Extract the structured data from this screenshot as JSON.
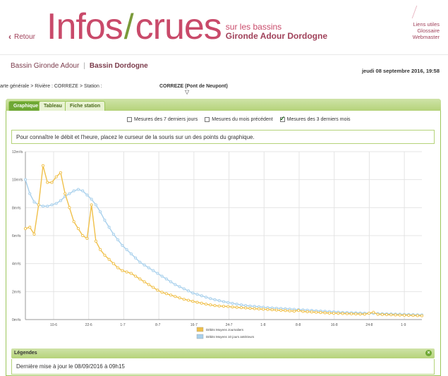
{
  "header": {
    "back_label": "Retour",
    "logo_part1": "Infos",
    "logo_part2": "crues",
    "logo_sub1": "sur les bassins",
    "logo_sub2": "Gironde Adour Dordogne",
    "links": [
      "Liens utiles",
      "Glossaire",
      "Webmaster"
    ]
  },
  "basins": {
    "items": [
      "Bassin Gironde Adour",
      "Bassin Dordogne"
    ],
    "separator": "|",
    "active_index": 1
  },
  "date_text": "jeudi 08 septembre 2016, 19:58",
  "breadcrumb": {
    "text": "arte générale > Rivière : CORREZE > Station :",
    "station": "CORREZE (Pont de Neupont)"
  },
  "tabs": [
    {
      "label": "Graphique",
      "active": true
    },
    {
      "label": "Tableau",
      "active": false
    },
    {
      "label": "Fiche station",
      "active": false
    }
  ],
  "filters": [
    {
      "label": "Mesures des 7 derniers jours",
      "checked": false
    },
    {
      "label": "Mesures du mois précédent",
      "checked": false
    },
    {
      "label": "Mesures des 3 derniers mois",
      "checked": true
    }
  ],
  "hint_text": "Pour connaître le débit et l'heure, placez le curseur de la souris sur un des points du graphique.",
  "legend_section_title": "Légendes",
  "update_text": "Dernière mise à jour le 08/09/2016 à 09h15",
  "colors": {
    "accent": "#6ea834",
    "series_daily": "#f0c04a",
    "series_10days": "#a8d0ec",
    "brand": "#c94a6a"
  },
  "chart_data": {
    "type": "line",
    "ylim": [
      0,
      12
    ],
    "y_ticks": [
      "0m³/s",
      "2m³/s",
      "4m³/s",
      "6m³/s",
      "8m³/s",
      "10m³/s",
      "12m³/s"
    ],
    "x_ticks": [
      "10-6",
      "22-6",
      "1-7",
      "8-7",
      "16-7",
      "24-7",
      "1-8",
      "8-8",
      "16-8",
      "24-8",
      "1-9"
    ],
    "series": [
      {
        "name": "Débits Moyens Journaliers",
        "values": [
          6.5,
          6.6,
          6.1,
          8.2,
          11.0,
          9.8,
          9.8,
          10.2,
          10.5,
          9.0,
          8.0,
          7.0,
          6.5,
          6.0,
          5.8,
          8.2,
          5.6,
          5.0,
          4.6,
          4.3,
          4.0,
          3.7,
          3.5,
          3.4,
          3.3,
          3.1,
          2.9,
          2.7,
          2.5,
          2.3,
          2.1,
          1.95,
          1.85,
          1.75,
          1.65,
          1.55,
          1.45,
          1.38,
          1.3,
          1.23,
          1.17,
          1.1,
          1.05,
          1.0,
          0.97,
          0.95,
          0.93,
          0.9,
          0.87,
          0.85,
          0.83,
          0.8,
          0.78,
          0.76,
          0.74,
          0.72,
          0.7,
          0.68,
          0.66,
          0.64,
          0.62,
          0.6,
          0.65,
          0.58,
          0.56,
          0.54,
          0.52,
          0.5,
          0.48,
          0.46,
          0.45,
          0.44,
          0.43,
          0.42,
          0.41,
          0.4,
          0.39,
          0.38,
          0.45,
          0.52,
          0.37,
          0.36,
          0.35,
          0.34,
          0.33,
          0.32,
          0.31,
          0.3,
          0.29,
          0.28,
          0.27
        ]
      },
      {
        "name": "Débits Moyens 10 jours antérieurs",
        "values": [
          10.0,
          9.0,
          8.4,
          8.2,
          8.1,
          8.1,
          8.2,
          8.3,
          8.5,
          8.8,
          9.0,
          9.2,
          9.3,
          9.2,
          8.9,
          8.6,
          8.2,
          7.7,
          7.1,
          6.6,
          6.1,
          5.7,
          5.3,
          5.0,
          4.7,
          4.4,
          4.1,
          3.9,
          3.7,
          3.5,
          3.3,
          3.1,
          2.9,
          2.7,
          2.5,
          2.35,
          2.2,
          2.05,
          1.9,
          1.8,
          1.7,
          1.6,
          1.5,
          1.42,
          1.35,
          1.28,
          1.22,
          1.16,
          1.1,
          1.05,
          1.0,
          0.97,
          0.94,
          0.91,
          0.88,
          0.85,
          0.83,
          0.81,
          0.79,
          0.77,
          0.75,
          0.73,
          0.71,
          0.69,
          0.67,
          0.65,
          0.63,
          0.61,
          0.59,
          0.57,
          0.55,
          0.53,
          0.51,
          0.5,
          0.49,
          0.48,
          0.47,
          0.46,
          0.45,
          0.44,
          0.43,
          0.42,
          0.41,
          0.4,
          0.39,
          0.38,
          0.37,
          0.36,
          0.35,
          0.34,
          0.33
        ]
      }
    ],
    "legend": "bottom",
    "grid": true
  }
}
